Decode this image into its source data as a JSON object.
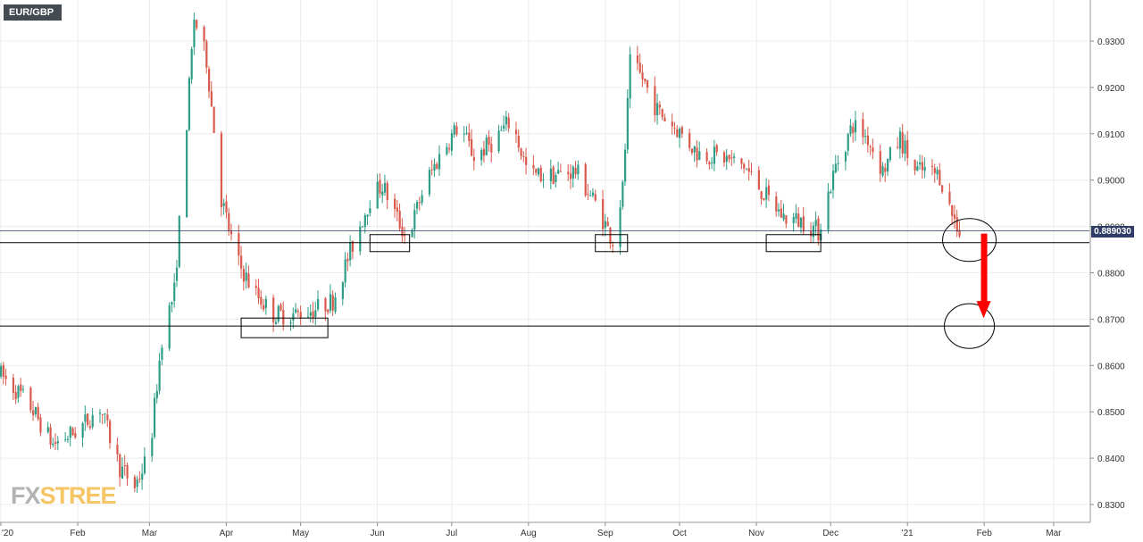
{
  "symbol": "EUR/GBP",
  "current_price_label": "0.889030",
  "watermark": {
    "part1": "FX",
    "part2": "STREE"
  },
  "colors": {
    "up": "#2e9d87",
    "down": "#d9594c",
    "arrow": "#ff0000",
    "grid": "#ececec",
    "price_line": "#2f3d66",
    "level_line": "#000000"
  },
  "chart_data": {
    "type": "candlestick",
    "title": "EUR/GBP",
    "ylim": [
      0.826,
      0.939
    ],
    "y_ticks": [
      "0.8300",
      "0.8400",
      "0.8500",
      "0.8600",
      "0.8700",
      "0.8800",
      "0.8900",
      "0.9000",
      "0.9100",
      "0.9200",
      "0.9300"
    ],
    "x_labels": [
      "'20",
      "Feb",
      "Mar",
      "Apr",
      "May",
      "Jun",
      "Jul",
      "Aug",
      "Sep",
      "Oct",
      "Nov",
      "Dec",
      "'21",
      "Feb",
      "Mar"
    ],
    "horizontal_levels": [
      0.8865,
      0.8685
    ],
    "current_price": 0.88903,
    "path_start": "2020-01-01",
    "path": [
      [
        "2020-01-01",
        0.858
      ],
      [
        "2020-01-12",
        0.852
      ],
      [
        "2020-01-22",
        0.843
      ],
      [
        "2020-02-01",
        0.846
      ],
      [
        "2020-02-10",
        0.851
      ],
      [
        "2020-02-18",
        0.838
      ],
      [
        "2020-02-24",
        0.834
      ],
      [
        "2020-03-01",
        0.841
      ],
      [
        "2020-03-06",
        0.866
      ],
      [
        "2020-03-11",
        0.876
      ],
      [
        "2020-03-15",
        0.905
      ],
      [
        "2020-03-19",
        0.935
      ],
      [
        "2020-03-24",
        0.926
      ],
      [
        "2020-03-30",
        0.896
      ],
      [
        "2020-04-05",
        0.883
      ],
      [
        "2020-04-12",
        0.876
      ],
      [
        "2020-04-20",
        0.871
      ],
      [
        "2020-04-28",
        0.871
      ],
      [
        "2020-05-06",
        0.872
      ],
      [
        "2020-05-14",
        0.874
      ],
      [
        "2020-05-22",
        0.886
      ],
      [
        "2020-05-29",
        0.896
      ],
      [
        "2020-06-03",
        0.899
      ],
      [
        "2020-06-08",
        0.893
      ],
      [
        "2020-06-13",
        0.887
      ],
      [
        "2020-06-20",
        0.899
      ],
      [
        "2020-06-28",
        0.907
      ],
      [
        "2020-07-04",
        0.912
      ],
      [
        "2020-07-10",
        0.905
      ],
      [
        "2020-07-17",
        0.908
      ],
      [
        "2020-07-25",
        0.913
      ],
      [
        "2020-08-01",
        0.901
      ],
      [
        "2020-08-10",
        0.901
      ],
      [
        "2020-08-20",
        0.902
      ],
      [
        "2020-08-28",
        0.895
      ],
      [
        "2020-09-04",
        0.887
      ],
      [
        "2020-09-08",
        0.898
      ],
      [
        "2020-09-11",
        0.925
      ],
      [
        "2020-09-16",
        0.922
      ],
      [
        "2020-09-22",
        0.915
      ],
      [
        "2020-09-30",
        0.911
      ],
      [
        "2020-10-08",
        0.906
      ],
      [
        "2020-10-18",
        0.905
      ],
      [
        "2020-10-27",
        0.903
      ],
      [
        "2020-11-04",
        0.897
      ],
      [
        "2020-11-12",
        0.892
      ],
      [
        "2020-11-20",
        0.891
      ],
      [
        "2020-11-26",
        0.889
      ],
      [
        "2020-12-03",
        0.903
      ],
      [
        "2020-12-10",
        0.912
      ],
      [
        "2020-12-16",
        0.909
      ],
      [
        "2020-12-22",
        0.902
      ],
      [
        "2020-12-29",
        0.909
      ],
      [
        "2021-01-04",
        0.902
      ],
      [
        "2021-01-08",
        0.902
      ],
      [
        "2021-01-14",
        0.901
      ],
      [
        "2021-01-18",
        0.894
      ],
      [
        "2021-01-22",
        0.889
      ]
    ]
  }
}
